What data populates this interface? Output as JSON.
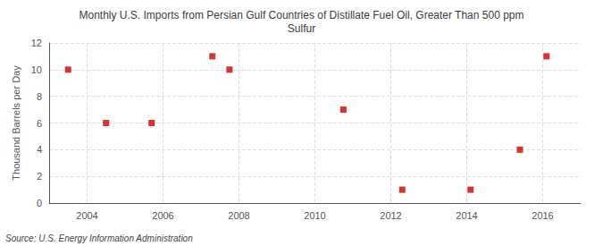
{
  "chart_data": {
    "type": "scatter",
    "title": "Monthly U.S. Imports from Persian Gulf Countries of Distillate Fuel Oil, Greater Than 500 ppm\nSulfur",
    "ylabel": "Thousand Barrels per Day",
    "annotations": [
      "Source: U.S. Energy Information Administration"
    ],
    "x": [
      2003.5,
      2004.5,
      2005.7,
      2007.3,
      2007.75,
      2010.75,
      2012.3,
      2014.1,
      2015.4,
      2016.1
    ],
    "values": [
      10,
      6,
      6,
      11,
      10,
      7,
      1,
      1,
      4,
      11
    ],
    "color": "#cc0000",
    "marker": "square",
    "xlim": [
      2003,
      2017
    ],
    "ylim": [
      0,
      12
    ],
    "xticks": [
      2004,
      2006,
      2008,
      2010,
      2012,
      2014,
      2016
    ],
    "yticks": [
      0,
      2,
      4,
      6,
      8,
      10,
      12
    ],
    "grid": true
  }
}
